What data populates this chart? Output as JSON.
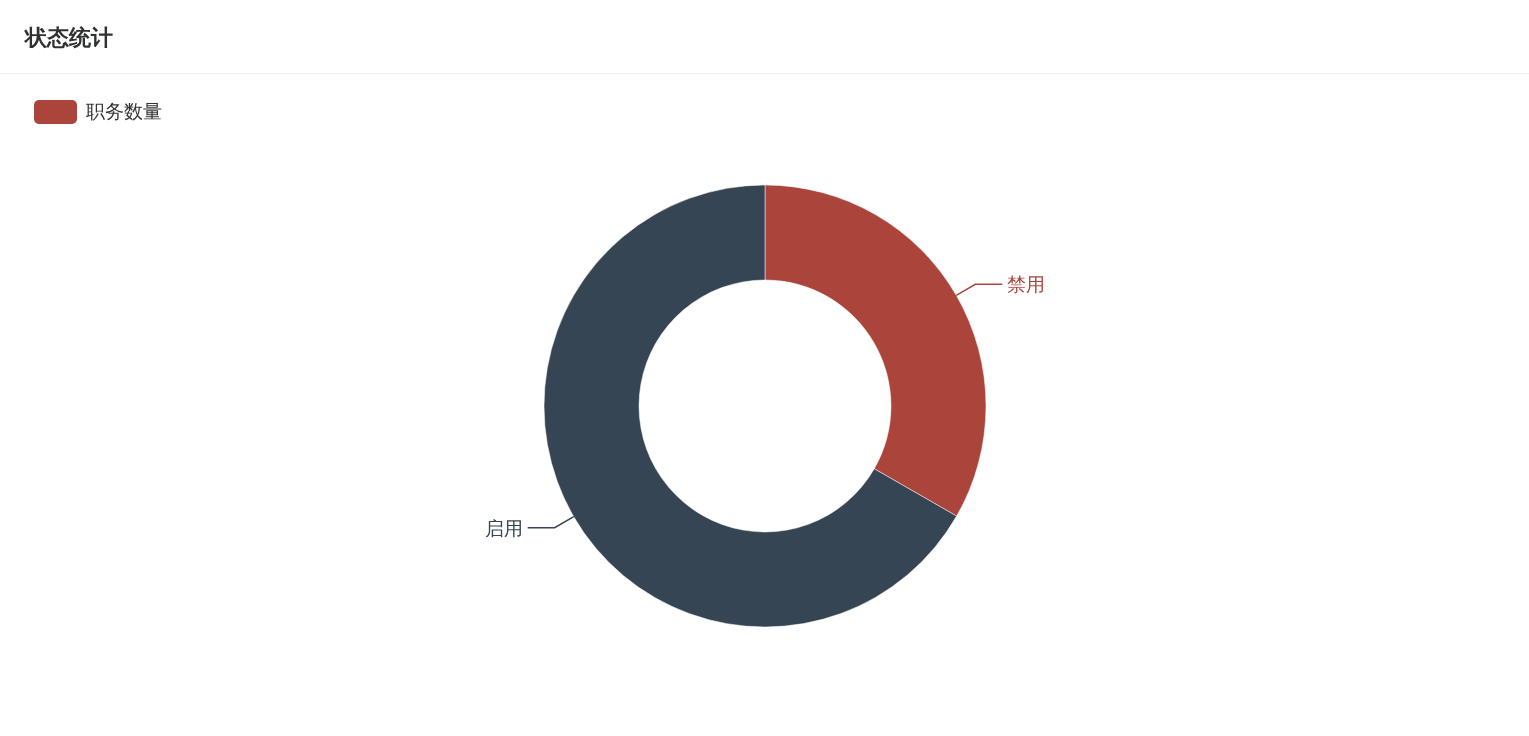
{
  "chart_data": {
    "type": "donut",
    "title": "状态统计",
    "categories": [
      "禁用",
      "启用"
    ],
    "legend": "top left",
    "series": [
      {
        "name": "职务数量",
        "values": [
          33.3,
          66.7
        ],
        "colors": [
          "#ab443a",
          "#364553"
        ]
      }
    ]
  }
}
